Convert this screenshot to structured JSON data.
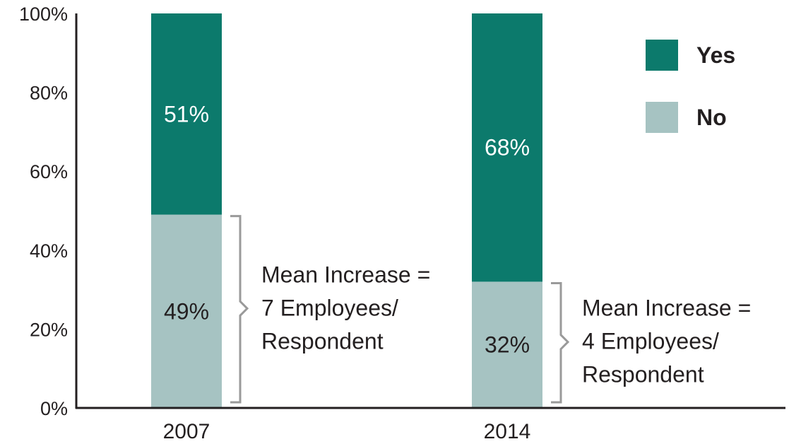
{
  "chart_data": {
    "type": "bar",
    "stacked": true,
    "categories": [
      "2007",
      "2014"
    ],
    "series": [
      {
        "name": "No",
        "values": [
          49,
          32
        ],
        "labels": [
          "49%",
          "32%"
        ],
        "color": "#a6c3c2",
        "label_color": "#231f20"
      },
      {
        "name": "Yes",
        "values": [
          51,
          68
        ],
        "labels": [
          "51%",
          "68%"
        ],
        "color": "#0c7a6c",
        "label_color": "#ffffff"
      }
    ],
    "y_ticks": [
      "0%",
      "20%",
      "40%",
      "60%",
      "80%",
      "100%"
    ],
    "ylim": [
      0,
      100
    ],
    "grid": false,
    "legend_position": "top-right",
    "annotations": [
      {
        "category": "2007",
        "lines": [
          "Mean Increase =",
          "7 Employees/",
          "Respondent"
        ]
      },
      {
        "category": "2014",
        "lines": [
          "Mean Increase =",
          "4 Employees/",
          "Respondent"
        ]
      }
    ],
    "bracket_color": "#9a9a9a"
  }
}
